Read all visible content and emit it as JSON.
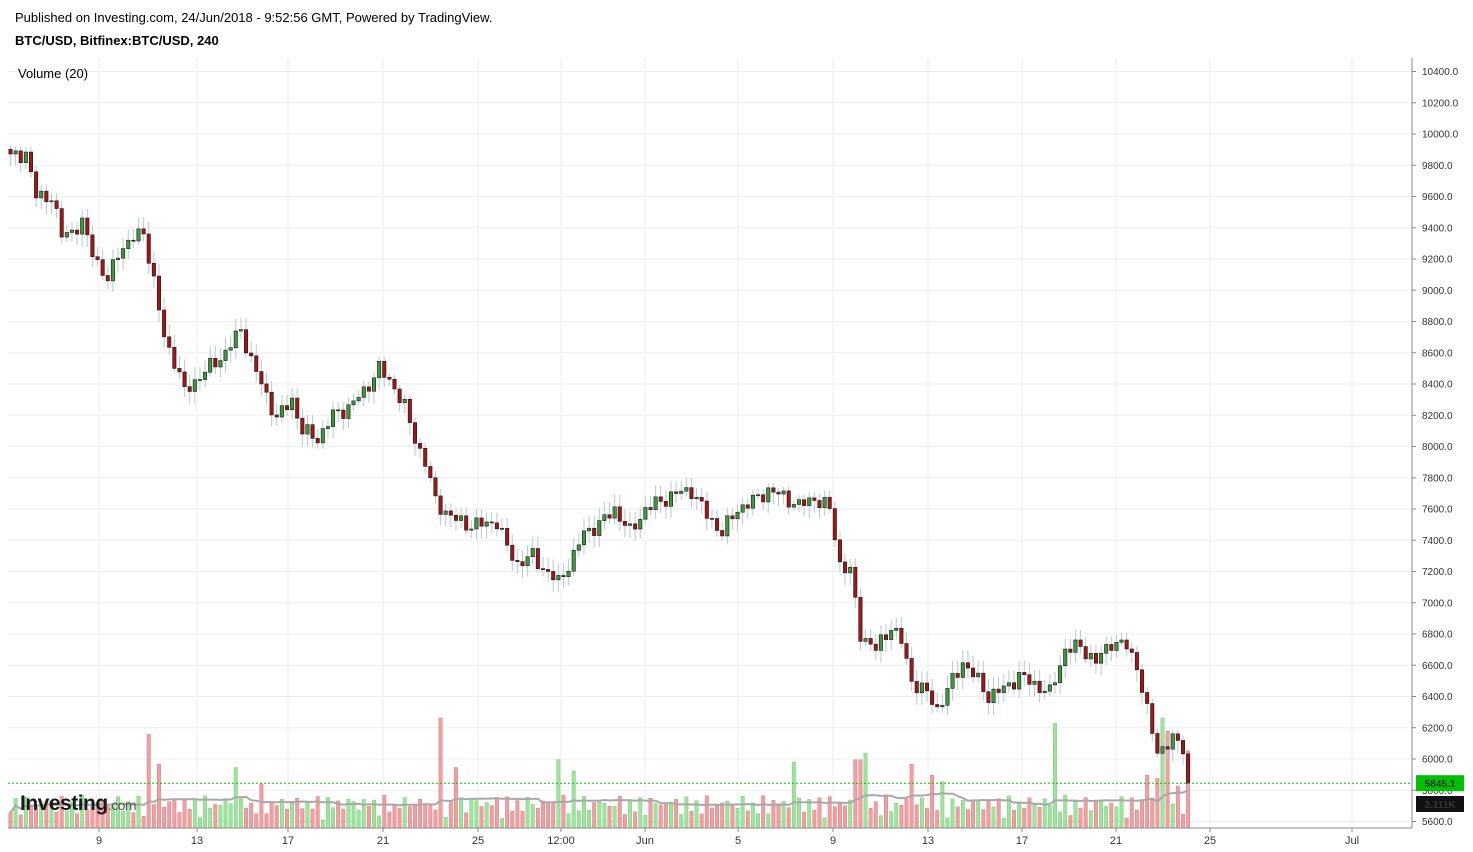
{
  "header": {
    "published": "Published on Investing.com, 24/Jun/2018 - 9:52:56 GMT, Powered by TradingView.",
    "symbol": "BTC/USD, Bitfinex:BTC/USD, 240"
  },
  "indicator": {
    "label": "Volume (20)"
  },
  "logo": {
    "brand": "Investing",
    "suffix": ".com"
  },
  "colors": {
    "up": "#3a9a3a",
    "down": "#a31515",
    "vol_up": "#9ee49e",
    "vol_down": "#f0a0a0",
    "ma": "#a8a8a8",
    "last_price": "#00c000",
    "grid": "#eeeeee"
  },
  "chart_data": {
    "type": "candlestick",
    "title": "BTC/USD, Bitfinex:BTC/USD, 240",
    "interval_hours": 4,
    "y_axis": {
      "min": 5550,
      "max": 10480,
      "ticks": [
        5600,
        5800,
        6000,
        6200,
        6400,
        6600,
        6800,
        7000,
        7200,
        7400,
        7600,
        7800,
        8000,
        8200,
        8400,
        8600,
        8800,
        9000,
        9200,
        9400,
        9600,
        9800,
        10000,
        10200,
        10400
      ],
      "position": "right"
    },
    "x_axis": {
      "ticks": [
        "9",
        "13",
        "17",
        "21",
        "25",
        "12:00",
        "Jun",
        "5",
        "9",
        "13",
        "17",
        "21",
        "25",
        "Jul"
      ]
    },
    "grid": true,
    "last_price": "5845.1",
    "volume_ma_last": "3.111K",
    "price_anchors": [
      {
        "i": 0,
        "c": 9850
      },
      {
        "i": 3,
        "c": 9880
      },
      {
        "i": 5,
        "c": 9600
      },
      {
        "i": 8,
        "c": 9600
      },
      {
        "i": 10,
        "c": 9350
      },
      {
        "i": 14,
        "c": 9420
      },
      {
        "i": 16,
        "c": 9250
      },
      {
        "i": 19,
        "c": 9050
      },
      {
        "i": 21,
        "c": 9250
      },
      {
        "i": 26,
        "c": 9380
      },
      {
        "i": 28,
        "c": 9050
      },
      {
        "i": 30,
        "c": 8700
      },
      {
        "i": 32,
        "c": 8550
      },
      {
        "i": 34,
        "c": 8350
      },
      {
        "i": 37,
        "c": 8450
      },
      {
        "i": 42,
        "c": 8600
      },
      {
        "i": 45,
        "c": 8750
      },
      {
        "i": 47,
        "c": 8550
      },
      {
        "i": 49,
        "c": 8400
      },
      {
        "i": 52,
        "c": 8180
      },
      {
        "i": 55,
        "c": 8300
      },
      {
        "i": 57,
        "c": 8100
      },
      {
        "i": 60,
        "c": 8050
      },
      {
        "i": 63,
        "c": 8200
      },
      {
        "i": 66,
        "c": 8250
      },
      {
        "i": 69,
        "c": 8350
      },
      {
        "i": 72,
        "c": 8500
      },
      {
        "i": 75,
        "c": 8380
      },
      {
        "i": 77,
        "c": 8250
      },
      {
        "i": 79,
        "c": 8050
      },
      {
        "i": 81,
        "c": 7900
      },
      {
        "i": 83,
        "c": 7650
      },
      {
        "i": 86,
        "c": 7550
      },
      {
        "i": 89,
        "c": 7500
      },
      {
        "i": 92,
        "c": 7500
      },
      {
        "i": 95,
        "c": 7520
      },
      {
        "i": 97,
        "c": 7350
      },
      {
        "i": 99,
        "c": 7250
      },
      {
        "i": 102,
        "c": 7300
      },
      {
        "i": 104,
        "c": 7220
      },
      {
        "i": 107,
        "c": 7130
      },
      {
        "i": 110,
        "c": 7300
      },
      {
        "i": 112,
        "c": 7450
      },
      {
        "i": 115,
        "c": 7500
      },
      {
        "i": 118,
        "c": 7600
      },
      {
        "i": 121,
        "c": 7450
      },
      {
        "i": 124,
        "c": 7600
      },
      {
        "i": 127,
        "c": 7650
      },
      {
        "i": 130,
        "c": 7700
      },
      {
        "i": 133,
        "c": 7720
      },
      {
        "i": 136,
        "c": 7560
      },
      {
        "i": 139,
        "c": 7450
      },
      {
        "i": 142,
        "c": 7600
      },
      {
        "i": 145,
        "c": 7650
      },
      {
        "i": 148,
        "c": 7720
      },
      {
        "i": 151,
        "c": 7680
      },
      {
        "i": 154,
        "c": 7620
      },
      {
        "i": 157,
        "c": 7670
      },
      {
        "i": 160,
        "c": 7600
      },
      {
        "i": 162,
        "c": 7250
      },
      {
        "i": 164,
        "c": 7200
      },
      {
        "i": 166,
        "c": 6800
      },
      {
        "i": 169,
        "c": 6700
      },
      {
        "i": 172,
        "c": 6850
      },
      {
        "i": 174,
        "c": 6750
      },
      {
        "i": 176,
        "c": 6500
      },
      {
        "i": 179,
        "c": 6420
      },
      {
        "i": 181,
        "c": 6320
      },
      {
        "i": 184,
        "c": 6500
      },
      {
        "i": 186,
        "c": 6620
      },
      {
        "i": 189,
        "c": 6500
      },
      {
        "i": 191,
        "c": 6400
      },
      {
        "i": 194,
        "c": 6450
      },
      {
        "i": 197,
        "c": 6530
      },
      {
        "i": 200,
        "c": 6480
      },
      {
        "i": 203,
        "c": 6420
      },
      {
        "i": 206,
        "c": 6700
      },
      {
        "i": 209,
        "c": 6720
      },
      {
        "i": 212,
        "c": 6620
      },
      {
        "i": 215,
        "c": 6750
      },
      {
        "i": 218,
        "c": 6720
      },
      {
        "i": 220,
        "c": 6600
      },
      {
        "i": 222,
        "c": 6300
      },
      {
        "i": 224,
        "c": 6050
      },
      {
        "i": 227,
        "c": 6120
      },
      {
        "i": 229,
        "c": 6080
      },
      {
        "i": 230,
        "c": 5845
      }
    ]
  }
}
